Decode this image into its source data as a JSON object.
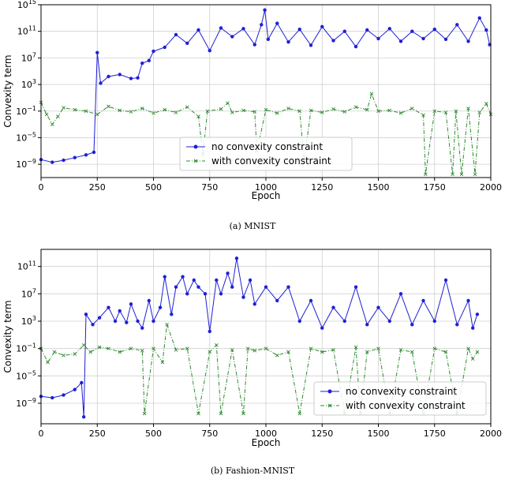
{
  "chart_data": [
    {
      "type": "line",
      "caption": "(a) MNIST",
      "xlabel": "Epoch",
      "ylabel": "Convexity term",
      "xlim": [
        0,
        2000
      ],
      "ylim_log10": [
        -11,
        15
      ],
      "yscale": "log",
      "xticks": [
        0,
        250,
        500,
        750,
        1000,
        1250,
        1500,
        1750,
        2000
      ],
      "yticks": [
        {
          "exp": -9,
          "label": "10−9"
        },
        {
          "exp": -5,
          "label": "10−5"
        },
        {
          "exp": -1,
          "label": "10−1"
        },
        {
          "exp": 3,
          "label": "103"
        },
        {
          "exp": 7,
          "label": "107"
        },
        {
          "exp": 11,
          "label": "1011"
        },
        {
          "exp": 15,
          "label": "1015"
        }
      ],
      "grid": true,
      "legend": "bottom-center",
      "series": [
        {
          "name": "no convexity constraint",
          "color": "#1f1fd6",
          "marker": "circle",
          "x": [
            0,
            50,
            100,
            150,
            200,
            235,
            250,
            265,
            300,
            350,
            400,
            430,
            450,
            480,
            500,
            550,
            600,
            650,
            700,
            750,
            800,
            850,
            900,
            950,
            980,
            995,
            1010,
            1050,
            1100,
            1150,
            1200,
            1250,
            1300,
            1350,
            1400,
            1450,
            1500,
            1550,
            1600,
            1650,
            1700,
            1750,
            1800,
            1850,
            1900,
            1950,
            1980,
            1995
          ],
          "log10": [
            -8.3,
            -8.7,
            -8.4,
            -8.0,
            -7.6,
            -7.2,
            7.8,
            3.2,
            4.2,
            4.5,
            3.9,
            4.0,
            6.2,
            6.6,
            8.0,
            8.6,
            10.5,
            9.2,
            11.2,
            8.1,
            11.5,
            10.2,
            11.4,
            9.0,
            12.0,
            14.2,
            9.8,
            12.2,
            9.4,
            11.3,
            8.9,
            11.7,
            9.6,
            11.0,
            8.7,
            11.2,
            9.9,
            11.4,
            9.5,
            11.0,
            9.9,
            11.3,
            9.8,
            12.0,
            9.5,
            13.0,
            11.2,
            9.0
          ]
        },
        {
          "name": "with convexity constraint",
          "color": "#2e8b2e",
          "marker": "x",
          "x": [
            0,
            25,
            50,
            75,
            100,
            150,
            200,
            250,
            300,
            350,
            400,
            450,
            500,
            550,
            600,
            650,
            700,
            720,
            740,
            800,
            830,
            850,
            900,
            950,
            960,
            1000,
            1050,
            1100,
            1150,
            1170,
            1200,
            1250,
            1300,
            1350,
            1400,
            1450,
            1470,
            1500,
            1550,
            1600,
            1650,
            1700,
            1710,
            1750,
            1800,
            1830,
            1845,
            1870,
            1900,
            1930,
            1950,
            1980,
            2000
          ],
          "log10": [
            0.3,
            -1.5,
            -3.0,
            -1.8,
            -0.5,
            -0.8,
            -1.0,
            -1.5,
            -0.3,
            -0.9,
            -1.1,
            -0.6,
            -1.3,
            -0.8,
            -1.2,
            -0.4,
            -1.8,
            -7.5,
            -1.0,
            -0.7,
            0.2,
            -1.2,
            -0.9,
            -1.1,
            -7.0,
            -0.8,
            -1.3,
            -0.6,
            -1.0,
            -8.5,
            -0.9,
            -1.2,
            -0.7,
            -1.1,
            -0.4,
            -0.8,
            1.6,
            -1.0,
            -0.9,
            -1.3,
            -0.6,
            -1.6,
            -10.5,
            -1.0,
            -1.2,
            -10.5,
            -1.0,
            -10.5,
            -0.6,
            -10.5,
            -1.2,
            0.1,
            -1.5
          ]
        }
      ]
    },
    {
      "type": "line",
      "caption": "(b) Fashion-MNIST",
      "xlabel": "Epoch",
      "ylabel": "Convexity term",
      "xlim": [
        0,
        2000
      ],
      "ylim_log10": [
        -12,
        13.5
      ],
      "yscale": "log",
      "xticks": [
        0,
        250,
        500,
        750,
        1000,
        1250,
        1500,
        1750,
        2000
      ],
      "yticks": [
        {
          "exp": -9,
          "label": "10−9"
        },
        {
          "exp": -5,
          "label": "10−5"
        },
        {
          "exp": -1,
          "label": "10−1"
        },
        {
          "exp": 3,
          "label": "103"
        },
        {
          "exp": 7,
          "label": "107"
        },
        {
          "exp": 11,
          "label": "1011"
        }
      ],
      "grid": true,
      "legend": "bottom-right",
      "series": [
        {
          "name": "no convexity constraint",
          "color": "#1f1fd6",
          "marker": "circle",
          "x": [
            0,
            50,
            100,
            150,
            180,
            190,
            200,
            230,
            260,
            300,
            330,
            350,
            380,
            400,
            430,
            450,
            480,
            500,
            530,
            550,
            580,
            600,
            630,
            650,
            680,
            700,
            730,
            750,
            780,
            800,
            830,
            850,
            870,
            900,
            930,
            950,
            1000,
            1050,
            1100,
            1150,
            1200,
            1250,
            1300,
            1350,
            1400,
            1450,
            1500,
            1550,
            1600,
            1650,
            1700,
            1750,
            1800,
            1850,
            1900,
            1920,
            1940
          ],
          "log10": [
            -8.0,
            -8.2,
            -7.8,
            -7.0,
            -6.0,
            -11.0,
            4.0,
            2.5,
            3.5,
            5.0,
            3.0,
            4.5,
            2.8,
            5.5,
            3.0,
            2.0,
            6.0,
            3.0,
            5.0,
            9.5,
            4.0,
            8.0,
            9.5,
            7.0,
            9.0,
            8.0,
            7.0,
            1.5,
            9.0,
            7.0,
            10.0,
            8.0,
            12.2,
            6.5,
            9.0,
            5.5,
            8.0,
            6.0,
            8.0,
            3.0,
            6.0,
            2.0,
            5.0,
            3.0,
            8.0,
            2.5,
            5.0,
            3.0,
            7.0,
            2.5,
            6.0,
            3.0,
            9.0,
            2.5,
            6.0,
            2.0,
            4.0
          ]
        },
        {
          "name": "with convexity constraint",
          "color": "#2e8b2e",
          "marker": "x",
          "x": [
            0,
            30,
            60,
            100,
            150,
            190,
            220,
            260,
            300,
            350,
            400,
            450,
            460,
            500,
            540,
            560,
            600,
            650,
            700,
            750,
            780,
            800,
            850,
            900,
            920,
            950,
            1000,
            1050,
            1100,
            1150,
            1200,
            1250,
            1300,
            1350,
            1400,
            1420,
            1450,
            1500,
            1550,
            1600,
            1650,
            1700,
            1750,
            1800,
            1850,
            1900,
            1920,
            1940
          ],
          "log10": [
            -1.0,
            -3.0,
            -1.5,
            -2.0,
            -1.8,
            -0.5,
            -1.5,
            -0.8,
            -1.0,
            -1.5,
            -1.0,
            -1.3,
            -10.5,
            -1.0,
            -3.0,
            2.5,
            -1.2,
            -1.0,
            -10.5,
            -1.5,
            -0.5,
            -10.5,
            -1.2,
            -10.5,
            -1.0,
            -1.3,
            -1.0,
            -2.0,
            -1.5,
            -10.5,
            -1.0,
            -1.5,
            -1.2,
            -10.5,
            -0.8,
            -10.5,
            -1.5,
            -1.0,
            -10.5,
            -1.2,
            -1.5,
            -10.5,
            -1.0,
            -1.5,
            -10.5,
            -1.0,
            -2.5,
            -1.5
          ]
        }
      ]
    }
  ]
}
